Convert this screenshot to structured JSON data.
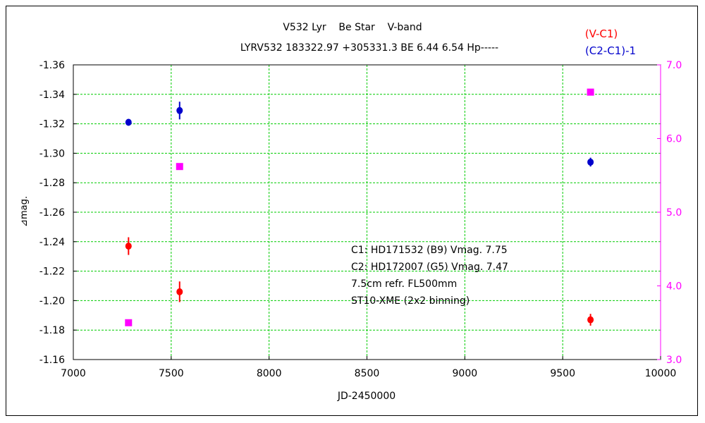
{
  "chart_data": {
    "type": "scatter",
    "title": "V532 Lyr    Be Star    V-band",
    "subtitle": "LYRV532 183322.97 +305331.3 BE 6.44 6.54 Hp-----",
    "xlabel": "JD-2450000",
    "ylabel": "⊿mag.",
    "xlim": [
      7000,
      10000
    ],
    "ylim_left": [
      -1.36,
      -1.16
    ],
    "ylim_right": [
      7.0,
      3.0
    ],
    "left_axis_inverted": true,
    "grid": true,
    "x_ticks": [
      "7000",
      "7500",
      "8000",
      "8500",
      "9000",
      "9500",
      "10000"
    ],
    "y_ticks_left": [
      "-1.36",
      "-1.34",
      "-1.32",
      "-1.30",
      "-1.28",
      "-1.26",
      "-1.24",
      "-1.22",
      "-1.20",
      "-1.18",
      "-1.16"
    ],
    "y_ticks_right": [
      "7.0",
      "6.0",
      "5.0",
      "4.0",
      "3.0"
    ],
    "legend": [
      {
        "label": "(V-C1)",
        "color": "#ff0000"
      },
      {
        "label": "(C2-C1)-1",
        "color": "#0000cc"
      }
    ],
    "series": [
      {
        "color": "#ff0000",
        "marker": "circle",
        "axis": "left",
        "x": [
          7282,
          7543,
          9642
        ],
        "y": [
          -1.237,
          -1.206,
          -1.187
        ],
        "err": [
          0.006,
          0.007,
          0.004
        ]
      },
      {
        "color": "#0000cc",
        "marker": "circle",
        "axis": "left",
        "x": [
          7282,
          7543,
          9642
        ],
        "y": [
          -1.321,
          -1.329,
          -1.294
        ],
        "err": [
          0.002,
          0.006,
          0.003
        ]
      },
      {
        "color": "#ff00ff",
        "marker": "square",
        "axis": "right",
        "x": [
          7282,
          7543,
          9642
        ],
        "y": [
          3.5,
          5.62,
          6.63
        ]
      }
    ],
    "annotations": [
      "C1: HD171532 (B9) Vmag. 7.75",
      "C2: HD172007 (G5) Vmag. 7.47",
      "7.5cm refr. FL500mm",
      "ST10-XME (2x2 binning)"
    ],
    "colors": {
      "grid": "#00cc00",
      "axis": "#000000",
      "right_axis": "#ff00ff"
    }
  }
}
